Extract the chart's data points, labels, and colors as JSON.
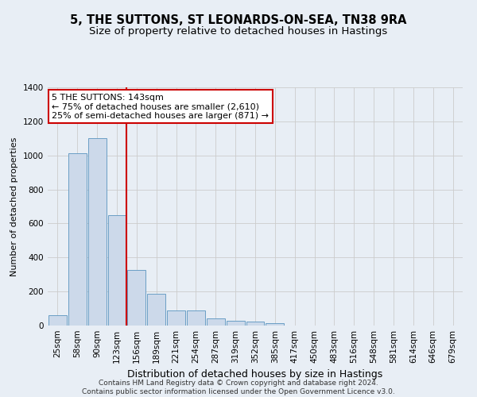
{
  "title": "5, THE SUTTONS, ST LEONARDS-ON-SEA, TN38 9RA",
  "subtitle": "Size of property relative to detached houses in Hastings",
  "xlabel": "Distribution of detached houses by size in Hastings",
  "ylabel": "Number of detached properties",
  "bar_values": [
    60,
    1015,
    1100,
    650,
    325,
    185,
    88,
    88,
    42,
    27,
    22,
    13,
    0,
    0,
    0,
    0,
    0,
    0,
    0,
    0,
    0
  ],
  "categories": [
    "25sqm",
    "58sqm",
    "90sqm",
    "123sqm",
    "156sqm",
    "189sqm",
    "221sqm",
    "254sqm",
    "287sqm",
    "319sqm",
    "352sqm",
    "385sqm",
    "417sqm",
    "450sqm",
    "483sqm",
    "516sqm",
    "548sqm",
    "581sqm",
    "614sqm",
    "646sqm",
    "679sqm"
  ],
  "bar_color": "#ccd9ea",
  "bar_edge_color": "#6a9ec5",
  "grid_color": "#cccccc",
  "background_color": "#e8eef5",
  "vline_color": "#cc0000",
  "annotation_text": "5 THE SUTTONS: 143sqm\n← 75% of detached houses are smaller (2,610)\n25% of semi-detached houses are larger (871) →",
  "annotation_box_color": "#ffffff",
  "annotation_box_edge": "#cc0000",
  "ylim": [
    0,
    1400
  ],
  "yticks": [
    0,
    200,
    400,
    600,
    800,
    1000,
    1200,
    1400
  ],
  "vline_pos": 3.5,
  "footer": "Contains HM Land Registry data © Crown copyright and database right 2024.\nContains public sector information licensed under the Open Government Licence v3.0.",
  "title_fontsize": 10.5,
  "subtitle_fontsize": 9.5,
  "ylabel_fontsize": 8,
  "xlabel_fontsize": 9,
  "annotation_fontsize": 8,
  "tick_fontsize": 7.5,
  "footer_fontsize": 6.5
}
